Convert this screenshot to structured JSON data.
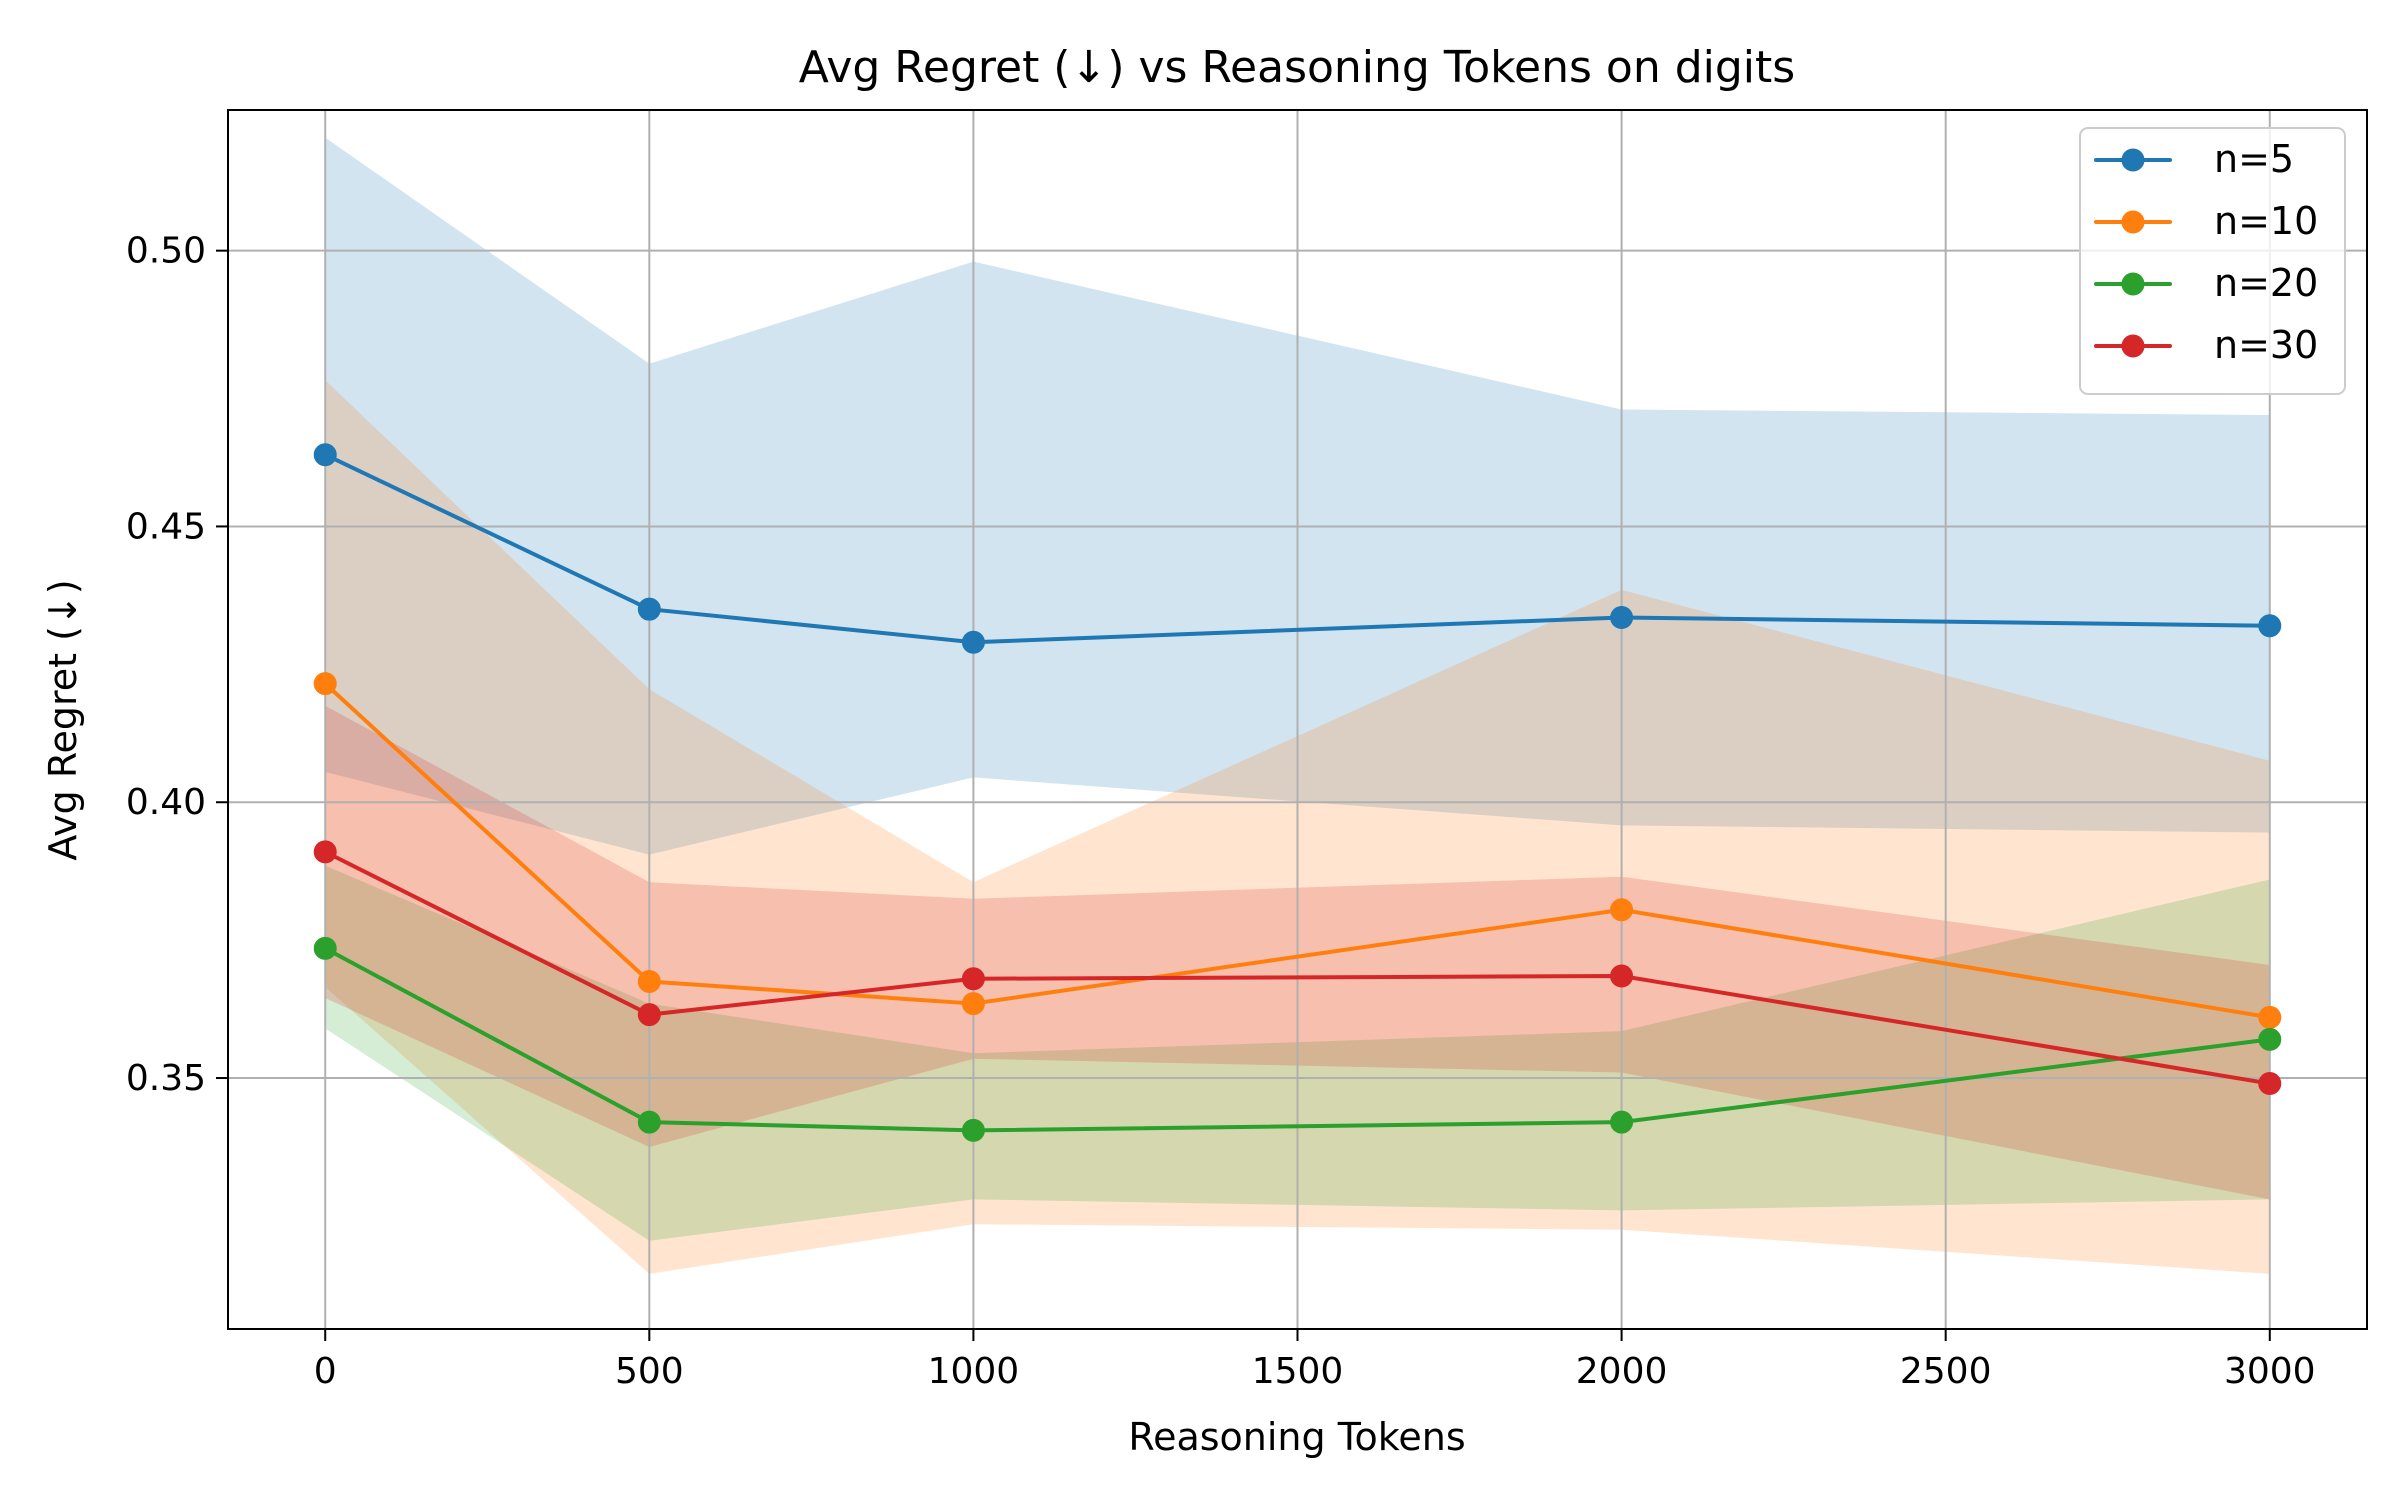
{
  "chart_data": {
    "type": "line",
    "title": "Avg Regret (↓) vs Reasoning Tokens on digits",
    "xlabel": "Reasoning Tokens",
    "ylabel": "Avg Regret (↓)",
    "xlim": [
      -150,
      3150
    ],
    "ylim": [
      0.3045,
      0.5255
    ],
    "xticks": [
      0,
      500,
      1000,
      1500,
      2000,
      2500,
      3000
    ],
    "xtick_labels": [
      "0",
      "500",
      "1000",
      "1500",
      "2000",
      "2500",
      "3000"
    ],
    "yticks": [
      0.35,
      0.4,
      0.45,
      0.5
    ],
    "ytick_labels": [
      "0.35",
      "0.40",
      "0.45",
      "0.50"
    ],
    "grid": true,
    "legend_position": "top-right",
    "x": [
      0,
      500,
      1000,
      2000,
      3000
    ],
    "series": [
      {
        "name": "n=5",
        "color": "#1f77b4",
        "values": [
          0.463,
          0.435,
          0.429,
          0.4335,
          0.432
        ],
        "upper": [
          0.5205,
          0.4795,
          0.498,
          0.4712,
          0.4702
        ],
        "lower": [
          0.4055,
          0.3905,
          0.4045,
          0.3958,
          0.3945
        ]
      },
      {
        "name": "n=10",
        "color": "#ff7f0e",
        "values": [
          0.4215,
          0.3675,
          0.3635,
          0.3805,
          0.361
        ],
        "upper": [
          0.4765,
          0.4205,
          0.3855,
          0.4385,
          0.4075
        ],
        "lower": [
          0.3665,
          0.3145,
          0.3235,
          0.3225,
          0.3145
        ]
      },
      {
        "name": "n=20",
        "color": "#2ca02c",
        "values": [
          0.3735,
          0.342,
          0.3405,
          0.342,
          0.357
        ],
        "upper": [
          0.3885,
          0.3635,
          0.3545,
          0.3585,
          0.386
        ],
        "lower": [
          0.359,
          0.3205,
          0.328,
          0.326,
          0.328
        ]
      },
      {
        "name": "n=30",
        "color": "#d62728",
        "values": [
          0.391,
          0.3615,
          0.368,
          0.3685,
          0.349
        ],
        "upper": [
          0.4175,
          0.3855,
          0.3825,
          0.3865,
          0.3705
        ],
        "lower": [
          0.3645,
          0.3375,
          0.3535,
          0.351,
          0.328
        ]
      }
    ]
  }
}
